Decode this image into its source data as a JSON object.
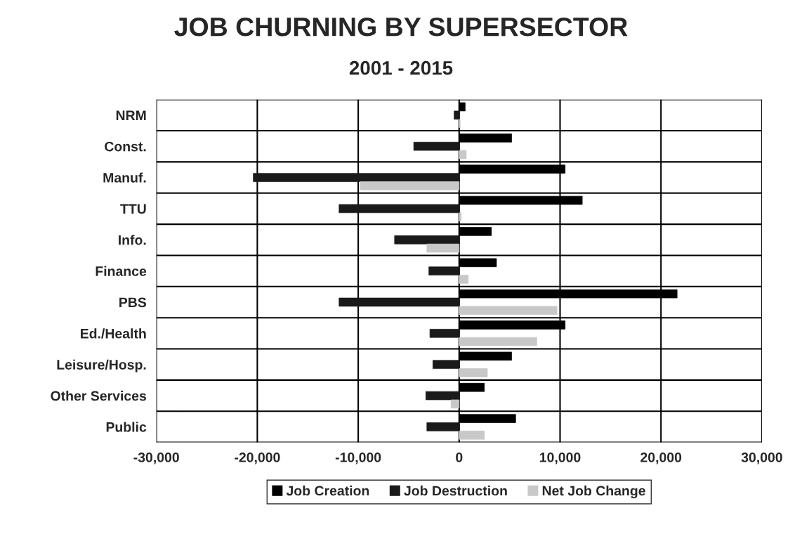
{
  "chart_data": {
    "type": "bar",
    "orientation": "horizontal",
    "title": "JOB CHURNING BY SUPERSECTOR",
    "subtitle": "2001 - 2015",
    "categories": [
      "NRM",
      "Const.",
      "Manuf.",
      "TTU",
      "Info.",
      "Finance",
      "PBS",
      "Ed./Health",
      "Leisure/Hosp.",
      "Other Services",
      "Public"
    ],
    "series": [
      {
        "name": "Job Creation",
        "color": "#000000",
        "values": [
          600,
          5200,
          10500,
          12200,
          3200,
          3700,
          21600,
          10500,
          5200,
          2500,
          5600
        ]
      },
      {
        "name": "Job Destruction",
        "color": "#1a1a1a",
        "values": [
          -500,
          -4500,
          -20400,
          -11900,
          -6400,
          -3000,
          -11900,
          -2900,
          -2600,
          -3300,
          -3200
        ]
      },
      {
        "name": "Net Job Change",
        "color": "#c8c8c8",
        "values": [
          100,
          700,
          -9800,
          200,
          -3200,
          900,
          9700,
          7700,
          2800,
          -800,
          2500
        ]
      }
    ],
    "xlim": [
      -30000,
      30000
    ],
    "xticks": [
      {
        "value": -30000,
        "label": "-30,000"
      },
      {
        "value": -20000,
        "label": "-20,000"
      },
      {
        "value": -10000,
        "label": "-10,000"
      },
      0,
      {
        "value": 10000,
        "label": "10,000"
      },
      {
        "value": 20000,
        "label": "20,000"
      },
      {
        "value": 30000,
        "label": "30,000"
      }
    ],
    "grid": true,
    "legend": "bottom"
  }
}
